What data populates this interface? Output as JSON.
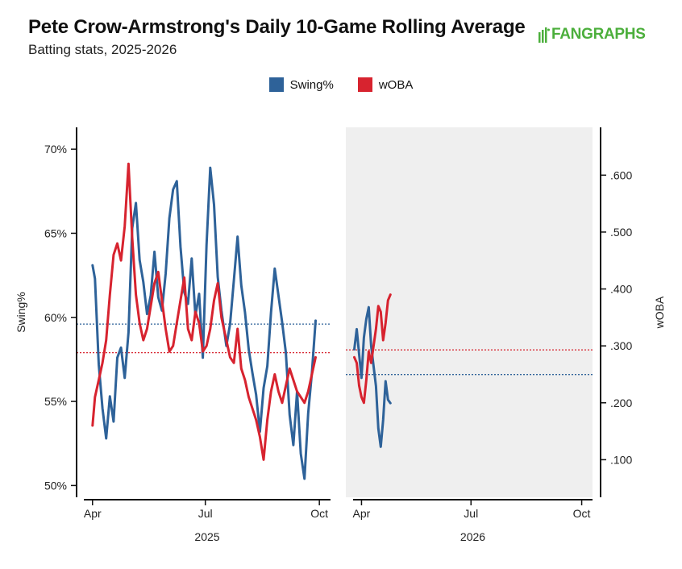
{
  "header": {
    "title": "Pete Crow-Armstrong's Daily 10-Game Rolling Average",
    "subtitle": "Batting stats, 2025-2026",
    "logo_text": "FANGRAPHS"
  },
  "chart_data": {
    "type": "line",
    "title": "Pete Crow-Armstrong's Daily 10-Game Rolling Average",
    "subtitle": "Batting stats, 2025-2026",
    "legend": [
      {
        "name": "Swing%",
        "color": "#2e6299"
      },
      {
        "name": "wOBA",
        "color": "#d7232f"
      }
    ],
    "legend_position": "top-center",
    "y_left": {
      "label": "Swing%",
      "range": [
        49.3,
        71.3
      ],
      "ticks": [
        "50%",
        "55%",
        "60%",
        "65%",
        "70%"
      ],
      "tick_values": [
        50,
        55,
        60,
        65,
        70
      ]
    },
    "y_right": {
      "label": "wOBA",
      "range": [
        0.034,
        0.684
      ],
      "ticks": [
        ".100",
        ".200",
        ".300",
        ".400",
        ".500",
        ".600"
      ],
      "tick_values": [
        0.1,
        0.2,
        0.3,
        0.4,
        0.5,
        0.6
      ]
    },
    "panels": [
      {
        "label": "2025",
        "x_ticks": [
          "Apr",
          "Jul",
          "Oct"
        ],
        "shaded": false,
        "reference_lines": {
          "swing_pct": 59.6,
          "woba": 0.288
        },
        "series": [
          {
            "name": "Swing%",
            "axis": "left",
            "x": [
              "2025-04-01",
              "2025-04-03",
              "2025-04-06",
              "2025-04-09",
              "2025-04-12",
              "2025-04-15",
              "2025-04-18",
              "2025-04-21",
              "2025-04-24",
              "2025-04-27",
              "2025-04-30",
              "2025-05-03",
              "2025-05-06",
              "2025-05-09",
              "2025-05-12",
              "2025-05-15",
              "2025-05-18",
              "2025-05-21",
              "2025-05-24",
              "2025-05-27",
              "2025-05-30",
              "2025-06-02",
              "2025-06-05",
              "2025-06-08",
              "2025-06-11",
              "2025-06-14",
              "2025-06-17",
              "2025-06-20",
              "2025-06-23",
              "2025-06-26",
              "2025-06-29",
              "2025-07-02",
              "2025-07-05",
              "2025-07-08",
              "2025-07-11",
              "2025-07-14",
              "2025-07-18",
              "2025-07-21",
              "2025-07-24",
              "2025-07-27",
              "2025-07-30",
              "2025-08-02",
              "2025-08-05",
              "2025-08-08",
              "2025-08-11",
              "2025-08-14",
              "2025-08-17",
              "2025-08-20",
              "2025-08-23",
              "2025-08-26",
              "2025-08-29",
              "2025-09-01",
              "2025-09-04",
              "2025-09-07",
              "2025-09-10",
              "2025-09-13",
              "2025-09-16",
              "2025-09-19",
              "2025-09-22",
              "2025-09-25",
              "2025-09-28"
            ],
            "values": [
              63.1,
              62.3,
              57.2,
              54.6,
              52.8,
              55.3,
              53.8,
              57.6,
              58.2,
              56.4,
              59.1,
              65.3,
              66.8,
              63.4,
              62.1,
              60.2,
              61.3,
              63.9,
              61.2,
              60.4,
              62.6,
              65.9,
              67.6,
              68.1,
              64.2,
              61.5,
              60.8,
              63.5,
              60.1,
              61.4,
              57.6,
              64.3,
              68.9,
              66.7,
              62.4,
              60.4,
              58.3,
              59.6,
              62.2,
              64.8,
              61.9,
              60.3,
              58.1,
              56.7,
              55.4,
              53.2,
              55.8,
              57.1,
              60.3,
              62.9,
              61.3,
              59.7,
              57.9,
              54.2,
              52.4,
              55.6,
              51.9,
              50.4,
              54.3,
              56.7,
              59.8
            ]
          },
          {
            "name": "wOBA",
            "axis": "right",
            "x": [
              "2025-04-01",
              "2025-04-03",
              "2025-04-06",
              "2025-04-09",
              "2025-04-12",
              "2025-04-15",
              "2025-04-18",
              "2025-04-21",
              "2025-04-24",
              "2025-04-27",
              "2025-04-30",
              "2025-05-03",
              "2025-05-06",
              "2025-05-09",
              "2025-05-12",
              "2025-05-15",
              "2025-05-18",
              "2025-05-21",
              "2025-05-24",
              "2025-05-27",
              "2025-05-30",
              "2025-06-02",
              "2025-06-05",
              "2025-06-08",
              "2025-06-11",
              "2025-06-14",
              "2025-06-17",
              "2025-06-20",
              "2025-06-23",
              "2025-06-26",
              "2025-06-29",
              "2025-07-02",
              "2025-07-05",
              "2025-07-08",
              "2025-07-11",
              "2025-07-14",
              "2025-07-18",
              "2025-07-21",
              "2025-07-24",
              "2025-07-27",
              "2025-07-30",
              "2025-08-02",
              "2025-08-05",
              "2025-08-08",
              "2025-08-11",
              "2025-08-14",
              "2025-08-17",
              "2025-08-20",
              "2025-08-23",
              "2025-08-26",
              "2025-08-29",
              "2025-09-01",
              "2025-09-04",
              "2025-09-07",
              "2025-09-10",
              "2025-09-13",
              "2025-09-16",
              "2025-09-19",
              "2025-09-22",
              "2025-09-25",
              "2025-09-28"
            ],
            "values": [
              0.16,
              0.21,
              0.24,
              0.27,
              0.31,
              0.39,
              0.46,
              0.48,
              0.45,
              0.51,
              0.62,
              0.49,
              0.39,
              0.34,
              0.31,
              0.33,
              0.37,
              0.41,
              0.43,
              0.38,
              0.33,
              0.29,
              0.3,
              0.34,
              0.38,
              0.42,
              0.33,
              0.31,
              0.36,
              0.34,
              0.29,
              0.3,
              0.33,
              0.38,
              0.41,
              0.35,
              0.31,
              0.28,
              0.27,
              0.33,
              0.26,
              0.24,
              0.21,
              0.19,
              0.17,
              0.14,
              0.1,
              0.17,
              0.22,
              0.25,
              0.22,
              0.2,
              0.23,
              0.26,
              0.24,
              0.22,
              0.21,
              0.2,
              0.22,
              0.25,
              0.28
            ]
          }
        ]
      },
      {
        "label": "2026",
        "x_ticks": [
          "Apr",
          "Jul",
          "Oct"
        ],
        "shaded": true,
        "reference_lines": {
          "swing_pct": 56.6,
          "woba": 0.293
        },
        "series": [
          {
            "name": "Swing%",
            "axis": "left",
            "x": [
              "2026-03-26",
              "2026-03-28",
              "2026-03-30",
              "2026-04-01",
              "2026-04-03",
              "2026-04-05",
              "2026-04-07",
              "2026-04-09",
              "2026-04-11",
              "2026-04-13",
              "2026-04-15",
              "2026-04-17",
              "2026-04-19",
              "2026-04-21",
              "2026-04-23",
              "2026-04-25"
            ],
            "values": [
              58.1,
              59.3,
              57.8,
              56.4,
              58.8,
              59.9,
              60.6,
              58.3,
              57.1,
              55.9,
              53.4,
              52.3,
              53.9,
              56.2,
              55.1,
              54.9
            ]
          },
          {
            "name": "wOBA",
            "axis": "right",
            "x": [
              "2026-03-26",
              "2026-03-28",
              "2026-03-30",
              "2026-04-01",
              "2026-04-03",
              "2026-04-05",
              "2026-04-07",
              "2026-04-09",
              "2026-04-11",
              "2026-04-13",
              "2026-04-15",
              "2026-04-17",
              "2026-04-19",
              "2026-04-21",
              "2026-04-23",
              "2026-04-25"
            ],
            "values": [
              0.28,
              0.27,
              0.23,
              0.21,
              0.2,
              0.24,
              0.29,
              0.27,
              0.3,
              0.33,
              0.37,
              0.36,
              0.31,
              0.34,
              0.38,
              0.39
            ]
          }
        ]
      }
    ]
  }
}
